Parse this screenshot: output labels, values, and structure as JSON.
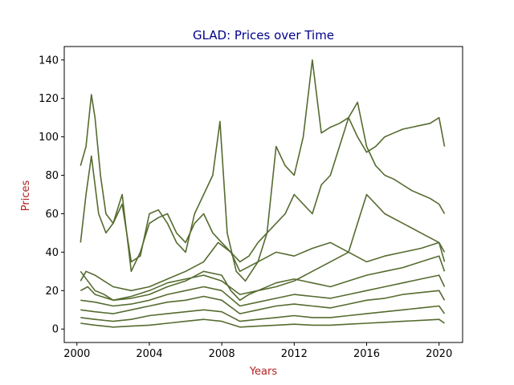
{
  "chart_data": {
    "type": "line",
    "title": "GLAD: Prices over Time",
    "xlabel": "Years",
    "ylabel": "Prices",
    "title_color": "#00008b",
    "label_color": "#b22222",
    "line_color": "#556b2f",
    "xlim": [
      1999.3,
      2021.3
    ],
    "ylim": [
      -7,
      147
    ],
    "x_ticks": [
      2000,
      2004,
      2008,
      2012,
      2016,
      2020
    ],
    "x_tick_labels": [
      "2000",
      "2004",
      "2008",
      "2012",
      "2016",
      "2020"
    ],
    "y_ticks": [
      0,
      20,
      40,
      60,
      80,
      100,
      120,
      140
    ],
    "y_tick_labels": [
      "0",
      "20",
      "40",
      "60",
      "80",
      "100",
      "120",
      "140"
    ],
    "grid": false,
    "series": [
      {
        "x": [
          2000.2,
          2000.5,
          2000.8,
          2001.0,
          2001.3,
          2001.6,
          2002.0,
          2002.5,
          2003.0,
          2003.5,
          2004.0,
          2004.5,
          2005.0,
          2005.5,
          2006.0,
          2006.5,
          2007.0,
          2007.5,
          2007.9,
          2008.3,
          2008.8,
          2009.3,
          2010.0,
          2010.5,
          2011.0,
          2011.5,
          2012.0,
          2012.5,
          2013.0,
          2013.5,
          2014.0,
          2014.5,
          2015.0,
          2015.5,
          2016.0,
          2016.5,
          2017.0,
          2017.5,
          2018.0,
          2018.5,
          2019.0,
          2019.5,
          2020.0,
          2020.3
        ],
        "y": [
          85,
          95,
          122,
          110,
          80,
          60,
          55,
          65,
          35,
          38,
          60,
          62,
          55,
          45,
          40,
          60,
          70,
          80,
          108,
          50,
          30,
          25,
          35,
          50,
          95,
          85,
          80,
          100,
          140,
          102,
          105,
          107,
          110,
          100,
          92,
          95,
          100,
          102,
          104,
          105,
          106,
          107,
          110,
          95
        ]
      },
      {
        "x": [
          2000.2,
          2000.5,
          2000.8,
          2001.2,
          2001.6,
          2002.0,
          2002.5,
          2003.0,
          2003.5,
          2004.0,
          2004.5,
          2005.0,
          2005.5,
          2006.0,
          2006.5,
          2007.0,
          2007.5,
          2008.0,
          2008.5,
          2009.0,
          2009.5,
          2010.0,
          2010.5,
          2011.0,
          2011.5,
          2012.0,
          2012.5,
          2013.0,
          2013.5,
          2014.0,
          2014.5,
          2015.0,
          2015.5,
          2016.0,
          2016.5,
          2017.0,
          2017.5,
          2018.0,
          2018.5,
          2019.0,
          2019.5,
          2020.0,
          2020.3
        ],
        "y": [
          45,
          70,
          90,
          60,
          50,
          55,
          70,
          30,
          40,
          55,
          58,
          60,
          50,
          45,
          55,
          60,
          50,
          45,
          40,
          35,
          38,
          45,
          50,
          55,
          60,
          70,
          65,
          60,
          75,
          80,
          95,
          110,
          118,
          95,
          85,
          80,
          78,
          75,
          72,
          70,
          68,
          65,
          60
        ]
      },
      {
        "x": [
          2000.2,
          2000.6,
          2001.0,
          2001.5,
          2002.0,
          2003.0,
          2004.0,
          2005.0,
          2006.0,
          2007.0,
          2008.0,
          2008.5,
          2009.0,
          2009.5,
          2010.0,
          2011.0,
          2012.0,
          2013.0,
          2014.0,
          2015.0,
          2015.5,
          2016.0,
          2017.0,
          2018.0,
          2019.0,
          2020.0,
          2020.3
        ],
        "y": [
          30,
          25,
          20,
          18,
          15,
          16,
          18,
          22,
          25,
          30,
          28,
          20,
          15,
          18,
          20,
          22,
          25,
          30,
          35,
          40,
          55,
          70,
          60,
          55,
          50,
          45,
          40
        ]
      },
      {
        "x": [
          2000.2,
          2000.6,
          2001.0,
          2002.0,
          2003.0,
          2004.0,
          2005.0,
          2006.0,
          2007.0,
          2008.0,
          2009.0,
          2010.0,
          2011.0,
          2012.0,
          2013.0,
          2014.0,
          2015.0,
          2016.0,
          2017.0,
          2018.0,
          2019.0,
          2020.0,
          2020.3
        ],
        "y": [
          20,
          22,
          18,
          15,
          17,
          20,
          24,
          26,
          28,
          25,
          18,
          20,
          24,
          26,
          24,
          22,
          25,
          28,
          30,
          32,
          35,
          38,
          30
        ]
      },
      {
        "x": [
          2000.2,
          2001.0,
          2002.0,
          2003.0,
          2004.0,
          2005.0,
          2006.0,
          2007.0,
          2008.0,
          2009.0,
          2010.0,
          2011.0,
          2012.0,
          2013.0,
          2014.0,
          2015.0,
          2016.0,
          2017.0,
          2018.0,
          2019.0,
          2020.0,
          2020.3
        ],
        "y": [
          15,
          14,
          12,
          13,
          15,
          18,
          20,
          22,
          20,
          12,
          14,
          16,
          18,
          17,
          16,
          18,
          20,
          22,
          24,
          26,
          28,
          22
        ]
      },
      {
        "x": [
          2000.2,
          2001.0,
          2002.0,
          2003.0,
          2004.0,
          2005.0,
          2006.0,
          2007.0,
          2008.0,
          2009.0,
          2010.0,
          2011.0,
          2012.0,
          2013.0,
          2014.0,
          2015.0,
          2016.0,
          2017.0,
          2018.0,
          2019.0,
          2020.0,
          2020.3
        ],
        "y": [
          10,
          9,
          8,
          10,
          12,
          14,
          15,
          17,
          15,
          8,
          10,
          12,
          13,
          12,
          11,
          13,
          15,
          16,
          18,
          19,
          20,
          15
        ]
      },
      {
        "x": [
          2000.2,
          2001.0,
          2002.0,
          2003.0,
          2004.0,
          2005.0,
          2006.0,
          2007.0,
          2008.0,
          2009.0,
          2010.0,
          2011.0,
          2012.0,
          2013.0,
          2014.0,
          2015.0,
          2016.0,
          2017.0,
          2018.0,
          2019.0,
          2020.0,
          2020.3
        ],
        "y": [
          6,
          5,
          4,
          5,
          7,
          8,
          9,
          10,
          9,
          4,
          5,
          6,
          7,
          6,
          6,
          7,
          8,
          9,
          10,
          11,
          12,
          8
        ]
      },
      {
        "x": [
          2000.2,
          2001.0,
          2002.0,
          2003.0,
          2004.0,
          2005.0,
          2006.0,
          2007.0,
          2008.0,
          2009.0,
          2010.0,
          2011.0,
          2012.0,
          2013.0,
          2014.0,
          2015.0,
          2016.0,
          2017.0,
          2018.0,
          2019.0,
          2020.0,
          2020.3
        ],
        "y": [
          3,
          2,
          1,
          1.5,
          2,
          3,
          4,
          5,
          4,
          1,
          1.5,
          2,
          2.5,
          2,
          2,
          2.5,
          3,
          3.5,
          4,
          4.5,
          5,
          3
        ]
      },
      {
        "x": [
          2000.2,
          2000.5,
          2001.0,
          2002.0,
          2003.0,
          2004.0,
          2005.0,
          2006.0,
          2007.0,
          2007.8,
          2008.5,
          2009.0,
          2010.0,
          2011.0,
          2012.0,
          2013.0,
          2014.0,
          2015.0,
          2016.0,
          2017.0,
          2018.0,
          2019.0,
          2020.0,
          2020.3
        ],
        "y": [
          25,
          30,
          28,
          22,
          20,
          22,
          26,
          30,
          35,
          45,
          40,
          30,
          35,
          40,
          38,
          42,
          45,
          40,
          35,
          38,
          40,
          42,
          45,
          35
        ]
      }
    ]
  }
}
